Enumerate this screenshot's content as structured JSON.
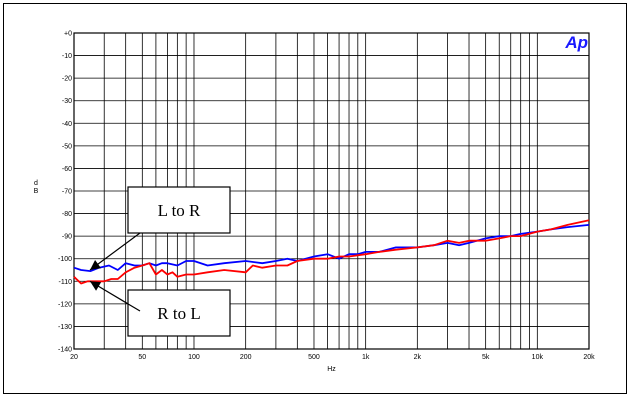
{
  "chart_data": {
    "type": "line",
    "xlabel": "Hz",
    "ylabel": "d\nB",
    "xscale": "log",
    "xlim": [
      20,
      20000
    ],
    "ylim": [
      -140,
      0
    ],
    "grid": true,
    "x_tick_labels": [
      "20",
      "50",
      "100",
      "200",
      "500",
      "1k",
      "2k",
      "5k",
      "10k",
      "20k"
    ],
    "x_tick_values": [
      20,
      50,
      100,
      200,
      500,
      1000,
      2000,
      5000,
      10000,
      20000
    ],
    "y_tick_labels": [
      "+0",
      "-10",
      "-20",
      "-30",
      "-40",
      "-50",
      "-60",
      "-70",
      "-80",
      "-90",
      "-100",
      "-110",
      "-120",
      "-130",
      "-140"
    ],
    "y_tick_values": [
      0,
      -10,
      -20,
      -30,
      -40,
      -50,
      -60,
      -70,
      -80,
      -90,
      -100,
      -110,
      -120,
      -130,
      -140
    ],
    "series": [
      {
        "color": "#0000ff",
        "points": [
          [
            20,
            -104
          ],
          [
            22,
            -105
          ],
          [
            25,
            -105.5
          ],
          [
            28,
            -104
          ],
          [
            32,
            -103
          ],
          [
            36,
            -105
          ],
          [
            40,
            -102
          ],
          [
            45,
            -103
          ],
          [
            50,
            -103
          ],
          [
            55,
            -102
          ],
          [
            60,
            -103
          ],
          [
            65,
            -102
          ],
          [
            70,
            -102
          ],
          [
            80,
            -103
          ],
          [
            90,
            -101
          ],
          [
            100,
            -101
          ],
          [
            120,
            -103
          ],
          [
            150,
            -102
          ],
          [
            200,
            -101
          ],
          [
            250,
            -102
          ],
          [
            300,
            -101
          ],
          [
            350,
            -100
          ],
          [
            400,
            -101
          ],
          [
            500,
            -99
          ],
          [
            600,
            -98
          ],
          [
            700,
            -100
          ],
          [
            800,
            -98
          ],
          [
            900,
            -98
          ],
          [
            1000,
            -97
          ],
          [
            1200,
            -97
          ],
          [
            1500,
            -95
          ],
          [
            2000,
            -95
          ],
          [
            2500,
            -94
          ],
          [
            3000,
            -93
          ],
          [
            3500,
            -94
          ],
          [
            4000,
            -93
          ],
          [
            5000,
            -91
          ],
          [
            6000,
            -90
          ],
          [
            7000,
            -90
          ],
          [
            8000,
            -89
          ],
          [
            10000,
            -88
          ],
          [
            12000,
            -87
          ],
          [
            15000,
            -86
          ],
          [
            20000,
            -85
          ]
        ]
      },
      {
        "color": "#ff0000",
        "points": [
          [
            20,
            -108
          ],
          [
            22,
            -111
          ],
          [
            24,
            -110
          ],
          [
            27,
            -110
          ],
          [
            30,
            -110
          ],
          [
            33,
            -109
          ],
          [
            36,
            -109
          ],
          [
            40,
            -106
          ],
          [
            45,
            -104
          ],
          [
            50,
            -103
          ],
          [
            55,
            -102
          ],
          [
            60,
            -107
          ],
          [
            65,
            -105
          ],
          [
            70,
            -107
          ],
          [
            75,
            -106
          ],
          [
            80,
            -108
          ],
          [
            90,
            -107
          ],
          [
            100,
            -107
          ],
          [
            120,
            -106
          ],
          [
            150,
            -105
          ],
          [
            200,
            -106
          ],
          [
            220,
            -103
          ],
          [
            250,
            -104
          ],
          [
            300,
            -103
          ],
          [
            350,
            -103
          ],
          [
            400,
            -101
          ],
          [
            500,
            -100
          ],
          [
            600,
            -100
          ],
          [
            700,
            -99
          ],
          [
            800,
            -99
          ],
          [
            1000,
            -98
          ],
          [
            1200,
            -97
          ],
          [
            1500,
            -96
          ],
          [
            2000,
            -95
          ],
          [
            2500,
            -94
          ],
          [
            3000,
            -92
          ],
          [
            3500,
            -93
          ],
          [
            4000,
            -92
          ],
          [
            5000,
            -92
          ],
          [
            6000,
            -91
          ],
          [
            7000,
            -90
          ],
          [
            8000,
            -90
          ],
          [
            10000,
            -88
          ],
          [
            12000,
            -87
          ],
          [
            15000,
            -85
          ],
          [
            20000,
            -83
          ]
        ]
      }
    ],
    "annotations": [
      {
        "label": "L to R",
        "target": [
          20,
          -105
        ]
      },
      {
        "label": "R to L",
        "target": [
          20,
          -110
        ]
      }
    ],
    "logo": "Ap",
    "colors": {
      "grid": "#000000",
      "border": "#000000"
    }
  }
}
